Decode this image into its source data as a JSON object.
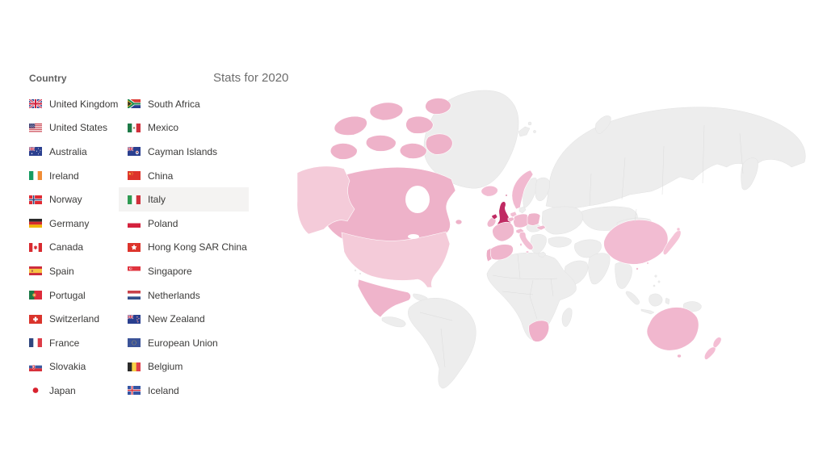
{
  "header": {
    "list_title": "Country",
    "report_title": "Stats for 2020"
  },
  "country_list": {
    "selected_country": "Italy",
    "column1": [
      {
        "label": "United Kingdom",
        "flag": "gb"
      },
      {
        "label": "United States",
        "flag": "us"
      },
      {
        "label": "Australia",
        "flag": "au"
      },
      {
        "label": "Ireland",
        "flag": "ie"
      },
      {
        "label": "Norway",
        "flag": "no"
      },
      {
        "label": "Germany",
        "flag": "de"
      },
      {
        "label": "Canada",
        "flag": "ca"
      },
      {
        "label": "Spain",
        "flag": "es"
      },
      {
        "label": "Portugal",
        "flag": "pt"
      },
      {
        "label": "Switzerland",
        "flag": "ch"
      },
      {
        "label": "France",
        "flag": "fr"
      },
      {
        "label": "Slovakia",
        "flag": "sk"
      },
      {
        "label": "Japan",
        "flag": "jp"
      }
    ],
    "column2": [
      {
        "label": "South Africa",
        "flag": "za"
      },
      {
        "label": "Mexico",
        "flag": "mx"
      },
      {
        "label": "Cayman Islands",
        "flag": "ky"
      },
      {
        "label": "China",
        "flag": "cn"
      },
      {
        "label": "Italy",
        "flag": "it"
      },
      {
        "label": "Poland",
        "flag": "pl"
      },
      {
        "label": "Hong Kong SAR China",
        "flag": "hk"
      },
      {
        "label": "Singapore",
        "flag": "sg"
      },
      {
        "label": "Netherlands",
        "flag": "nl"
      },
      {
        "label": "New Zealand",
        "flag": "nz"
      },
      {
        "label": "European Union",
        "flag": "eu"
      },
      {
        "label": "Belgium",
        "flag": "be"
      },
      {
        "label": "Iceland",
        "flag": "is"
      }
    ]
  },
  "map": {
    "type": "choropleth-world-map",
    "ocean_color": "#ffffff",
    "no_data_color": "#ededed",
    "country_colors": {
      "united-kingdom": "#c02a63",
      "united-states": "#f4cbd9",
      "canada": "#eeb2c9",
      "mexico": "#efb4cb",
      "iceland": "#f2bcd2",
      "ireland": "#f0b8ce",
      "norway": "#f1b9d0",
      "france": "#efb7cd",
      "spain": "#efb5cc",
      "portugal": "#edadc6",
      "germany": "#f0b9cf",
      "poland": "#eeb3ca",
      "netherlands": "#f2bed3",
      "belgium": "#f0b6cd",
      "switzerland": "#f1bad0",
      "slovakia": "#f0b8ce",
      "italy": "#f2bed3",
      "china": "#f2bcd2",
      "hong-kong": "#eeb2c9",
      "japan": "#f5c4d7",
      "south-africa": "#efb0c9",
      "australia": "#f1b7ce",
      "new-zealand": "#f4bed4"
    }
  }
}
